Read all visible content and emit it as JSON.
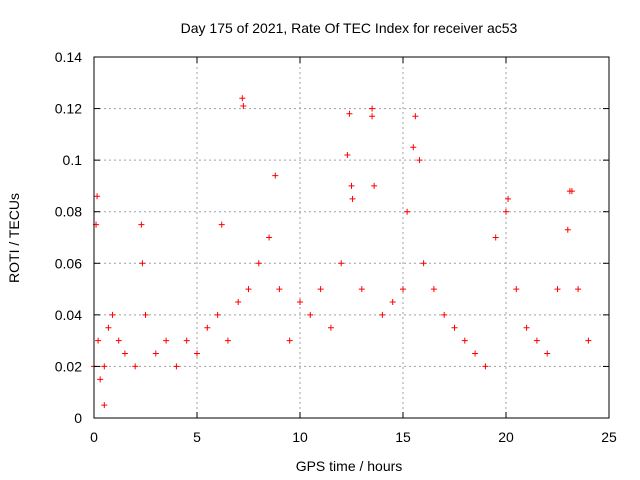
{
  "chart_data": {
    "type": "scatter",
    "title": "Day 175 of 2021, Rate Of TEC Index for receiver ac53",
    "xlabel": "GPS time / hours",
    "ylabel": "ROTI / TECUs",
    "xlim": [
      0,
      25
    ],
    "ylim": [
      0,
      0.14
    ],
    "xticks": [
      "0",
      "5",
      "10",
      "15",
      "20",
      "25"
    ],
    "yticks": [
      "0",
      "0.02",
      "0.04",
      "0.06",
      "0.08",
      "0.1",
      "0.12",
      "0.14"
    ],
    "grid": true,
    "marker": "plus",
    "color": "#ff0000",
    "series": [
      {
        "x": [
          0.0,
          0.1,
          0.15,
          0.2,
          0.3,
          0.5,
          0.5,
          0.7,
          0.9,
          1.2,
          1.5,
          2.0,
          2.3,
          2.35,
          2.5,
          3.0,
          3.5,
          4.0,
          4.5,
          5.0,
          5.5,
          6.0,
          6.2,
          6.5,
          7.0,
          7.2,
          7.25,
          7.5,
          8.0,
          8.5,
          8.8,
          9.0,
          9.5,
          10.0,
          10.5,
          11.0,
          11.5,
          12.0,
          12.3,
          12.4,
          12.5,
          12.55,
          13.0,
          13.5,
          13.5,
          13.6,
          14.0,
          14.5,
          15.0,
          15.2,
          15.5,
          15.6,
          15.8,
          16.0,
          16.5,
          17.0,
          17.5,
          18.0,
          18.5,
          19.0,
          19.5,
          20.0,
          20.1,
          20.5,
          21.0,
          21.5,
          22.0,
          22.5,
          23.0,
          23.1,
          23.2,
          23.5,
          24.0
        ],
        "y": [
          0.02,
          0.075,
          0.086,
          0.03,
          0.015,
          0.005,
          0.02,
          0.035,
          0.04,
          0.03,
          0.025,
          0.02,
          0.075,
          0.06,
          0.04,
          0.025,
          0.03,
          0.02,
          0.03,
          0.025,
          0.035,
          0.04,
          0.075,
          0.03,
          0.045,
          0.124,
          0.121,
          0.05,
          0.06,
          0.07,
          0.094,
          0.05,
          0.03,
          0.045,
          0.04,
          0.05,
          0.035,
          0.06,
          0.102,
          0.118,
          0.09,
          0.085,
          0.05,
          0.12,
          0.117,
          0.09,
          0.04,
          0.045,
          0.05,
          0.08,
          0.105,
          0.117,
          0.1,
          0.06,
          0.05,
          0.04,
          0.035,
          0.03,
          0.025,
          0.02,
          0.07,
          0.08,
          0.085,
          0.05,
          0.035,
          0.03,
          0.025,
          0.05,
          0.073,
          0.088,
          0.088,
          0.05,
          0.03
        ]
      }
    ]
  }
}
